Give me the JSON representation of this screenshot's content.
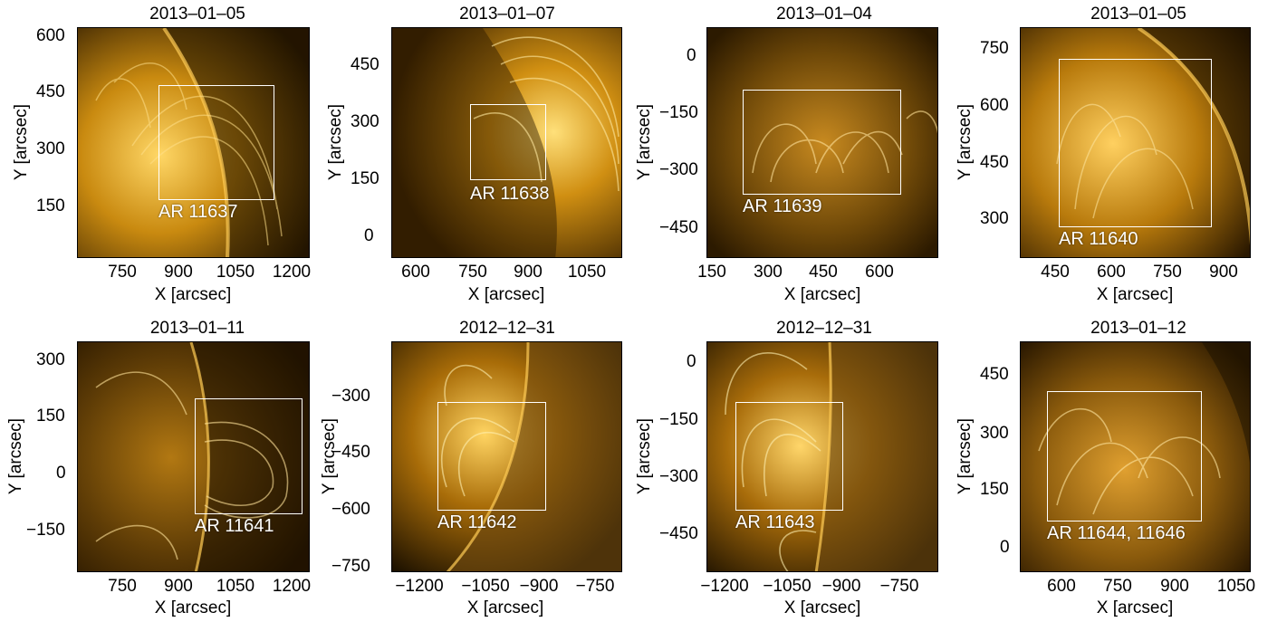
{
  "panels": [
    {
      "title": "2013–01–05",
      "region": "AR 11637",
      "x_ticks": [
        "750",
        "900",
        "1050",
        "1200"
      ],
      "y_ticks": [
        "600",
        "450",
        "300",
        "150"
      ],
      "xlabel": "X [arcsec]",
      "ylabel": "Y [arcsec]"
    },
    {
      "title": "2013–01–07",
      "region": "AR 11638",
      "x_ticks": [
        "600",
        "750",
        "900",
        "1050"
      ],
      "y_ticks": [
        "450",
        "300",
        "150",
        "0"
      ],
      "xlabel": "X [arcsec]",
      "ylabel": "Y [arcsec]"
    },
    {
      "title": "2013–01–04",
      "region": "AR 11639",
      "x_ticks": [
        "150",
        "300",
        "450",
        "600"
      ],
      "y_ticks": [
        "0",
        "−150",
        "−300",
        "−450"
      ],
      "xlabel": "X [arcsec]",
      "ylabel": "Y [arcsec]"
    },
    {
      "title": "2013–01–05",
      "region": "AR 11640",
      "x_ticks": [
        "450",
        "600",
        "750",
        "900"
      ],
      "y_ticks": [
        "750",
        "600",
        "450",
        "300"
      ],
      "xlabel": "X [arcsec]",
      "ylabel": "Y [arcsec]"
    },
    {
      "title": "2013–01–11",
      "region": "AR 11641",
      "x_ticks": [
        "750",
        "900",
        "1050",
        "1200"
      ],
      "y_ticks": [
        "300",
        "150",
        "0",
        "−150"
      ],
      "xlabel": "X [arcsec]",
      "ylabel": "Y [arcsec]"
    },
    {
      "title": "2012–12–31",
      "region": "AR 11642",
      "x_ticks": [
        "−1200",
        "−1050",
        "−900",
        "−750"
      ],
      "y_ticks": [
        "−300",
        "−450",
        "−600",
        "−750"
      ],
      "xlabel": "X [arcsec]",
      "ylabel": "Y [arcsec]"
    },
    {
      "title": "2012–12–31",
      "region": "AR 11643",
      "x_ticks": [
        "−1200",
        "−1050",
        "−900",
        "−750"
      ],
      "y_ticks": [
        "0",
        "−150",
        "−300",
        "−450"
      ],
      "xlabel": "X [arcsec]",
      "ylabel": "Y [arcsec]"
    },
    {
      "title": "2013–01–12",
      "region": "AR 11644, 11646",
      "x_ticks": [
        "600",
        "750",
        "900",
        "1050"
      ],
      "y_ticks": [
        "450",
        "300",
        "150",
        "0"
      ],
      "xlabel": "X [arcsec]",
      "ylabel": "Y [arcsec]"
    }
  ]
}
